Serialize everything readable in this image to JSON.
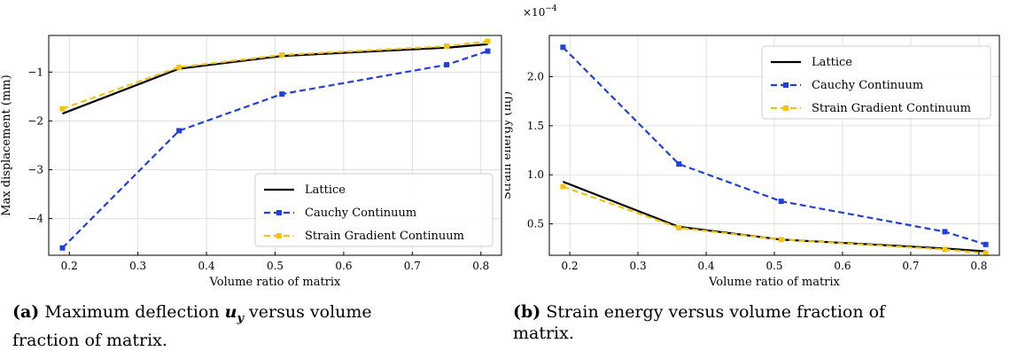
{
  "chart_data": [
    {
      "type": "line",
      "xlabel": "Volume ratio of matrix",
      "ylabel": "Max displacement (mm)",
      "xlim": [
        0.17,
        0.83
      ],
      "ylim": [
        -4.75,
        -0.25
      ],
      "xticks": [
        0.2,
        0.3,
        0.4,
        0.5,
        0.6,
        0.7,
        0.8
      ],
      "xtick_labels": [
        "0.2",
        "0.3",
        "0.4",
        "0.5",
        "0.6",
        "0.7",
        "0.8"
      ],
      "yticks": [
        -4,
        -3,
        -2,
        -1
      ],
      "ytick_labels": [
        "−4",
        "−3",
        "−2",
        "−1"
      ],
      "grid": true,
      "legend_position": "lower-right",
      "series": [
        {
          "name": "Lattice",
          "style": "solid",
          "color": "#000000",
          "marker": false,
          "x": [
            0.19,
            0.36,
            0.51,
            0.75,
            0.81
          ],
          "y": [
            -1.85,
            -0.93,
            -0.67,
            -0.5,
            -0.43
          ]
        },
        {
          "name": "Cauchy Continuum",
          "style": "dashed",
          "color": "#1f3fe0",
          "marker": true,
          "x": [
            0.19,
            0.36,
            0.51,
            0.75,
            0.81
          ],
          "y": [
            -4.6,
            -2.2,
            -1.45,
            -0.85,
            -0.57
          ]
        },
        {
          "name": "Strain Gradient Continuum",
          "style": "dashed",
          "color": "#f2c40c",
          "marker": true,
          "x": [
            0.19,
            0.36,
            0.51,
            0.75,
            0.81
          ],
          "y": [
            -1.75,
            -0.9,
            -0.65,
            -0.47,
            -0.37
          ]
        }
      ]
    },
    {
      "type": "line",
      "xlabel": "Volume ratio of matrix",
      "ylabel": "Strain energy (mJ)",
      "multiplier": "×10",
      "multiplier_exp": "−4",
      "xlim": [
        0.17,
        0.83
      ],
      "ylim": [
        0.18,
        2.42
      ],
      "xticks": [
        0.2,
        0.3,
        0.4,
        0.5,
        0.6,
        0.7,
        0.8
      ],
      "xtick_labels": [
        "0.2",
        "0.3",
        "0.4",
        "0.5",
        "0.6",
        "0.7",
        "0.8"
      ],
      "yticks": [
        0.5,
        1.0,
        1.5,
        2.0
      ],
      "ytick_labels": [
        "0.5",
        "1.0",
        "1.5",
        "2.0"
      ],
      "grid": true,
      "legend_position": "upper-right",
      "series": [
        {
          "name": "Lattice",
          "style": "solid",
          "color": "#000000",
          "marker": false,
          "x": [
            0.19,
            0.36,
            0.51,
            0.75,
            0.81
          ],
          "y": [
            0.93,
            0.47,
            0.34,
            0.25,
            0.22
          ]
        },
        {
          "name": "Cauchy Continuum",
          "style": "dashed",
          "color": "#1f3fe0",
          "marker": true,
          "x": [
            0.19,
            0.36,
            0.51,
            0.75,
            0.81
          ],
          "y": [
            2.3,
            1.11,
            0.73,
            0.42,
            0.29
          ]
        },
        {
          "name": "Strain Gradient Continuum",
          "style": "dashed",
          "color": "#f2c40c",
          "marker": true,
          "x": [
            0.19,
            0.36,
            0.51,
            0.75,
            0.81
          ],
          "y": [
            0.88,
            0.46,
            0.34,
            0.24,
            0.2
          ]
        }
      ]
    }
  ],
  "captions": [
    {
      "tag": "(a)",
      "text_before": "Maximum deflection ",
      "math": "u",
      "math_sub": "y",
      "text_after": " versus volume",
      "line2": "fraction of matrix."
    },
    {
      "tag": "(b)",
      "text_before": "Strain energy versus volume fraction of",
      "line2": "matrix."
    }
  ]
}
